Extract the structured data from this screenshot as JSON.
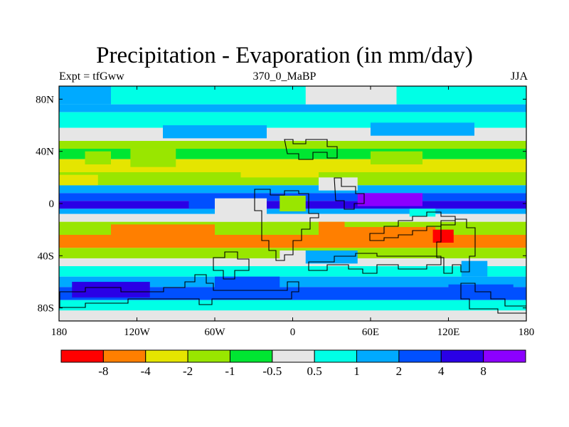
{
  "chart_data": {
    "type": "heatmap",
    "title": "Precipitation - Evaporation (in mm/day)",
    "subtitle_left": "Expt = tfGww",
    "subtitle_center": "370_0_MaBP",
    "subtitle_right": "JJA",
    "x_ticks": [
      {
        "value": -180,
        "label": "180"
      },
      {
        "value": -120,
        "label": "120W"
      },
      {
        "value": -60,
        "label": "60W"
      },
      {
        "value": 0,
        "label": "0"
      },
      {
        "value": 60,
        "label": "60E"
      },
      {
        "value": 120,
        "label": "120E"
      },
      {
        "value": 180,
        "label": "180"
      }
    ],
    "y_ticks": [
      {
        "value": 80,
        "label": "80N"
      },
      {
        "value": 40,
        "label": "40N"
      },
      {
        "value": 0,
        "label": "0"
      },
      {
        "value": -40,
        "label": "40S"
      },
      {
        "value": -80,
        "label": "80S"
      }
    ],
    "xlim": [
      -180,
      180
    ],
    "ylim": [
      -90,
      90
    ],
    "colorbar": {
      "colors": [
        "#ff0000",
        "#ff7f00",
        "#e5e500",
        "#99e600",
        "#00e632",
        "#e6e6e6",
        "#00ffe6",
        "#00aaff",
        "#0050ff",
        "#2a00e6",
        "#8c00ff"
      ],
      "labels": [
        "-8",
        "-4",
        "-2",
        "-1",
        "-0.5",
        "0.5",
        "1",
        "2",
        "4",
        "8"
      ]
    },
    "bands": [
      {
        "lat": [
          76,
          90
        ],
        "level": 6
      },
      {
        "lat": [
          70,
          76
        ],
        "level": 7
      },
      {
        "lat": [
          58,
          70
        ],
        "level": 6
      },
      {
        "lat": [
          48,
          58
        ],
        "level": 5
      },
      {
        "lat": [
          42,
          48
        ],
        "level": 3
      },
      {
        "lat": [
          34,
          42
        ],
        "level": 4
      },
      {
        "lat": [
          24,
          34
        ],
        "level": 2
      },
      {
        "lat": [
          14,
          24
        ],
        "level": 3
      },
      {
        "lat": [
          8,
          14
        ],
        "level": 7
      },
      {
        "lat": [
          2,
          8
        ],
        "level": 8
      },
      {
        "lat": [
          -4,
          2
        ],
        "level": 9
      },
      {
        "lat": [
          -8,
          -4
        ],
        "level": 7
      },
      {
        "lat": [
          -14,
          -8
        ],
        "level": 5
      },
      {
        "lat": [
          -24,
          -14
        ],
        "level": 3
      },
      {
        "lat": [
          -34,
          -24
        ],
        "level": 1
      },
      {
        "lat": [
          -42,
          -34
        ],
        "level": 3
      },
      {
        "lat": [
          -48,
          -42
        ],
        "level": 5
      },
      {
        "lat": [
          -56,
          -48
        ],
        "level": 6
      },
      {
        "lat": [
          -64,
          -56
        ],
        "level": 7
      },
      {
        "lat": [
          -74,
          -64
        ],
        "level": 8
      },
      {
        "lat": [
          -82,
          -74
        ],
        "level": 6
      },
      {
        "lat": [
          -90,
          -82
        ],
        "level": 5
      }
    ],
    "patches": [
      {
        "lon": [
          -180,
          -140
        ],
        "lat": [
          76,
          90
        ],
        "level": 7
      },
      {
        "lon": [
          10,
          80
        ],
        "lat": [
          76,
          90
        ],
        "level": 5
      },
      {
        "lon": [
          -100,
          -20
        ],
        "lat": [
          50,
          60
        ],
        "level": 7
      },
      {
        "lon": [
          60,
          140
        ],
        "lat": [
          52,
          62
        ],
        "level": 7
      },
      {
        "lon": [
          -160,
          -140
        ],
        "lat": [
          30,
          40
        ],
        "level": 3
      },
      {
        "lon": [
          -125,
          -90
        ],
        "lat": [
          28,
          42
        ],
        "level": 3
      },
      {
        "lon": [
          -40,
          20
        ],
        "lat": [
          20,
          32
        ],
        "level": 2
      },
      {
        "lon": [
          60,
          100
        ],
        "lat": [
          30,
          40
        ],
        "level": 3
      },
      {
        "lon": [
          -180,
          -150
        ],
        "lat": [
          14,
          22
        ],
        "level": 2
      },
      {
        "lon": [
          20,
          50
        ],
        "lat": [
          10,
          20
        ],
        "level": 5
      },
      {
        "lon": [
          50,
          100
        ],
        "lat": [
          -2,
          8
        ],
        "level": 10
      },
      {
        "lon": [
          -80,
          -40
        ],
        "lat": [
          -4,
          6
        ],
        "level": 8
      },
      {
        "lon": [
          90,
          110
        ],
        "lat": [
          -10,
          -4
        ],
        "level": 6
      },
      {
        "lon": [
          -140,
          -60
        ],
        "lat": [
          -30,
          -16
        ],
        "level": 1
      },
      {
        "lon": [
          20,
          40
        ],
        "lat": [
          -30,
          -14
        ],
        "level": 1
      },
      {
        "lon": [
          40,
          110
        ],
        "lat": [
          -30,
          -18
        ],
        "level": 1
      },
      {
        "lon": [
          108,
          124
        ],
        "lat": [
          -30,
          -20
        ],
        "level": 0
      },
      {
        "lon": [
          -60,
          -20
        ],
        "lat": [
          -14,
          4
        ],
        "level": 5
      },
      {
        "lon": [
          -10,
          10
        ],
        "lat": [
          -6,
          6
        ],
        "level": 3
      },
      {
        "lon": [
          -10,
          20
        ],
        "lat": [
          -46,
          -36
        ],
        "level": 5
      },
      {
        "lon": [
          10,
          50
        ],
        "lat": [
          -46,
          -36
        ],
        "level": 7
      },
      {
        "lon": [
          130,
          150
        ],
        "lat": [
          -56,
          -44
        ],
        "level": 7
      },
      {
        "lon": [
          -170,
          -110
        ],
        "lat": [
          -72,
          -60
        ],
        "level": 9
      },
      {
        "lon": [
          -60,
          -10
        ],
        "lat": [
          -66,
          -56
        ],
        "level": 8
      },
      {
        "lon": [
          120,
          170
        ],
        "lat": [
          -72,
          -62
        ],
        "level": 8
      }
    ]
  }
}
